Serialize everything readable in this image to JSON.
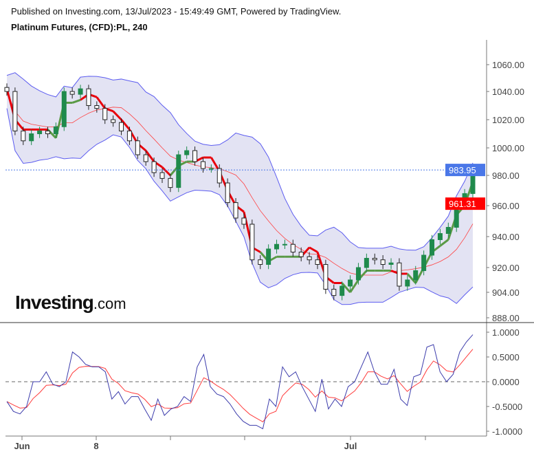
{
  "header": {
    "published": "Published on Investing.com, 13/Jul/2023 - 15:49:49 GMT, Powered by TradingView.",
    "symbol": "Platinum Futures, (CFD):PL, 240"
  },
  "logo": {
    "main": "Investing",
    "suffix": ".com"
  },
  "colors": {
    "up": "#1f8a4c",
    "down": "#222222",
    "band": "#5b5bf0",
    "band_fill": "#e3e3f3",
    "supertrend_down": "#e8000b",
    "supertrend_up": "#5a9a46",
    "ma": "#ff4040",
    "last_price": "#4a77e8",
    "osc_main": "#3b3bab",
    "osc_signal": "#ff3b3b"
  },
  "chart_data": [
    {
      "type": "candlestick",
      "y_ticks": [
        1060,
        1040,
        1020,
        1000,
        980,
        960,
        940,
        920,
        904,
        888
      ],
      "y_tick_labels": [
        "1060.00",
        "1040.00",
        "1020.00",
        "1000.00",
        "980.00",
        "960.00",
        "940.00",
        "920.00",
        "904.00",
        "888.00"
      ],
      "ylim": [
        888,
        1070
      ],
      "closes": [
        1040,
        1012,
        1005,
        1010,
        1012,
        1010,
        1015,
        1040,
        1038,
        1042,
        1030,
        1028,
        1020,
        1018,
        1012,
        1005,
        995,
        990,
        982,
        978,
        972,
        995,
        998,
        990,
        985,
        985,
        975,
        962,
        952,
        948,
        925,
        922,
        932,
        935,
        935,
        930,
        927,
        925,
        922,
        906,
        902,
        908,
        912,
        920,
        926,
        925,
        922,
        923,
        908,
        912,
        918,
        928,
        938,
        942,
        946,
        962,
        968,
        984
      ],
      "last_price": "983.95",
      "marker_price": "961.31",
      "x_tick_labels": [
        "Jun",
        "8",
        "",
        "",
        "Jul",
        ""
      ]
    },
    {
      "type": "line",
      "y_ticks": [
        "1.0000",
        "0.5000",
        "0.0000",
        "-0.5000",
        "-1.0000"
      ],
      "ylim": [
        -1,
        1
      ],
      "zero_line": true,
      "series_main": [
        -0.4,
        -0.6,
        -0.65,
        -0.5,
        0.0,
        0.0,
        0.2,
        -0.05,
        -0.1,
        0.0,
        0.6,
        0.5,
        0.35,
        0.3,
        0.3,
        0.2,
        -0.35,
        -0.2,
        -0.45,
        -0.3,
        -0.3,
        -0.55,
        -0.78,
        -0.35,
        -0.68,
        -0.55,
        -0.5,
        -0.3,
        -0.4,
        0.3,
        0.55,
        -0.1,
        -0.25,
        -0.3,
        -0.45,
        -0.65,
        -0.8,
        -0.88,
        -0.88,
        -0.95,
        -0.35,
        -0.5,
        0.3,
        0.1,
        0.2,
        -0.1,
        -0.35,
        -0.6,
        0.05,
        -0.55,
        -0.35,
        -0.5,
        -0.1,
        0.0,
        0.3,
        0.6,
        0.2,
        -0.05,
        -0.05,
        0.25,
        -0.35,
        -0.48,
        0.1,
        0.15,
        0.7,
        0.75,
        0.2,
        0.0,
        0.15,
        0.6,
        0.8,
        0.95
      ]
    }
  ]
}
